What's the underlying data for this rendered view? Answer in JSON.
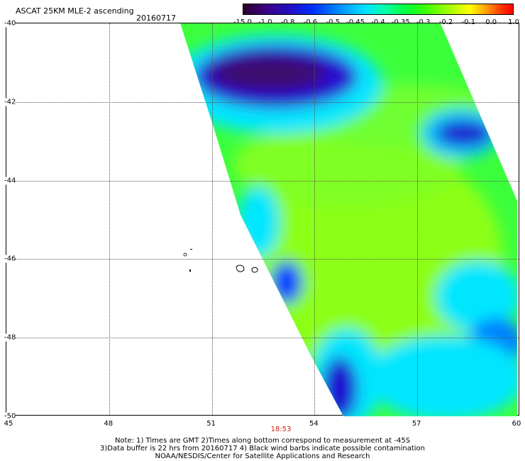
{
  "header": {
    "title": "ASCAT 25KM MLE-2 ascending",
    "date": "20160717"
  },
  "colorbar": {
    "labels": [
      "-15.0",
      "-1.0",
      "-0.8",
      "-0.6",
      "-0.5",
      "-0.45",
      "-0.4",
      "-0.35",
      "-0.3",
      "-0.2",
      "-0.1",
      "0.0",
      "1.0"
    ]
  },
  "axes": {
    "lat_labels": [
      "-40",
      "-42",
      "-44",
      "-46",
      "-48",
      "-50"
    ],
    "lon_labels": [
      "45",
      "48",
      "51",
      "54",
      "57",
      "60"
    ]
  },
  "time_label": "18:53",
  "notes": {
    "line1": "Note: 1) Times are GMT 2)Times along bottom correspond to measurement at -45S",
    "line2": "3)Data buffer is 22 hrs from 20160717 4) Black wind barbs indicate possible contamination",
    "line3": "NOAA/NESDIS/Center for Satellite Applications and Research"
  },
  "colors": {
    "swath_base": "#3cff3c",
    "low_blue": "#2a10d0",
    "deep_purple": "#3c0a6e",
    "cyan": "#00e6ff",
    "light_green": "#8cff14"
  }
}
